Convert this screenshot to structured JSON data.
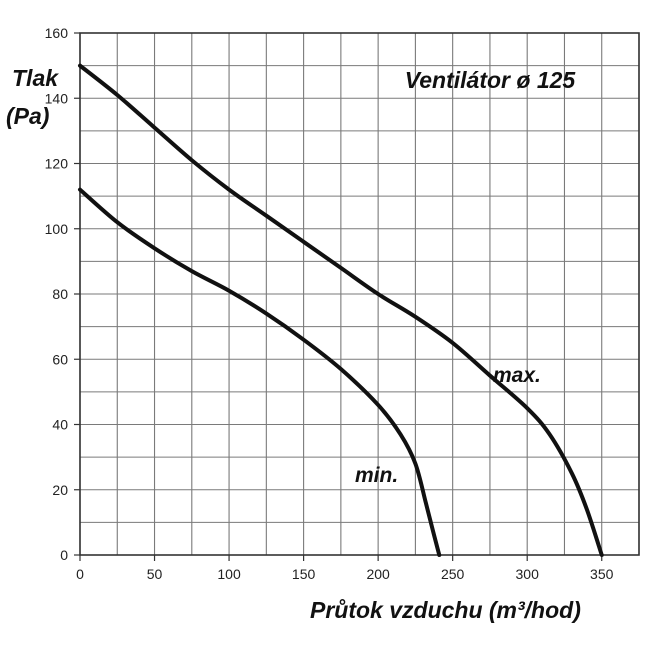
{
  "chart_data": {
    "type": "line",
    "title": "Ventilátor ø 125",
    "ylabel_line1": "Tlak",
    "ylabel_line2": "(Pa)",
    "xlabel": "Průtok vzduchu (m³/hod)",
    "xlim": [
      0,
      375
    ],
    "ylim": [
      0,
      160
    ],
    "x_ticks": [
      0,
      50,
      100,
      150,
      200,
      250,
      300,
      350
    ],
    "y_ticks": [
      0,
      20,
      40,
      60,
      80,
      100,
      120,
      140,
      160
    ],
    "grid": true,
    "line_color": "#111111",
    "series": [
      {
        "name": "max.",
        "points": [
          [
            0,
            150
          ],
          [
            25,
            141
          ],
          [
            50,
            131
          ],
          [
            75,
            121
          ],
          [
            100,
            112
          ],
          [
            125,
            104
          ],
          [
            150,
            96
          ],
          [
            175,
            88
          ],
          [
            200,
            80
          ],
          [
            225,
            73
          ],
          [
            250,
            65
          ],
          [
            275,
            55
          ],
          [
            300,
            45
          ],
          [
            315,
            37
          ],
          [
            330,
            25
          ],
          [
            340,
            14
          ],
          [
            350,
            0
          ]
        ]
      },
      {
        "name": "min.",
        "points": [
          [
            0,
            112
          ],
          [
            25,
            102
          ],
          [
            50,
            94
          ],
          [
            75,
            87
          ],
          [
            100,
            81
          ],
          [
            125,
            74
          ],
          [
            150,
            66
          ],
          [
            175,
            57
          ],
          [
            200,
            46
          ],
          [
            215,
            37
          ],
          [
            225,
            28
          ],
          [
            232,
            16
          ],
          [
            237,
            7
          ],
          [
            241,
            0
          ]
        ]
      }
    ]
  }
}
